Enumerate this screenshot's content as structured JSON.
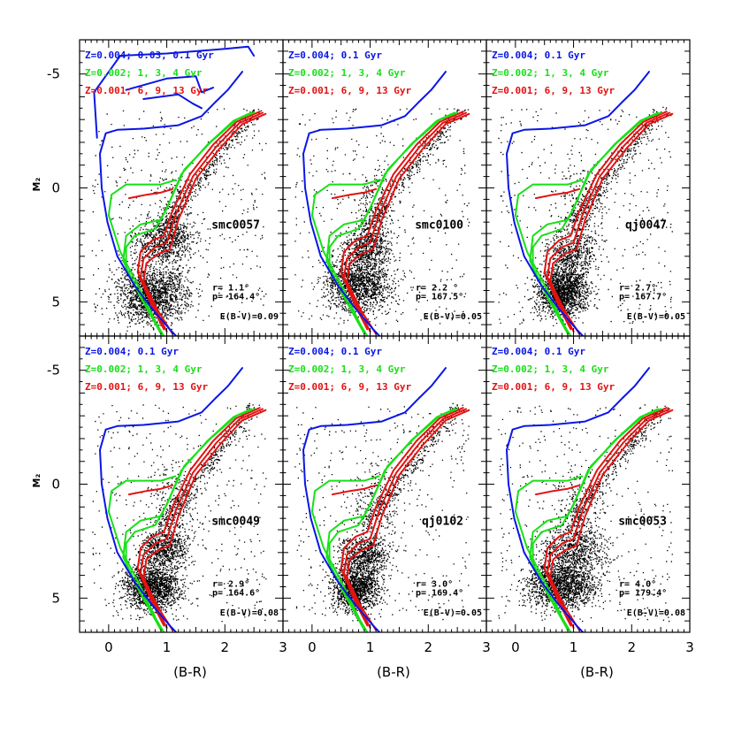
{
  "colors": {
    "blue": "#0a16e6",
    "green": "#18e018",
    "red": "#e31212",
    "stars": "#000000"
  },
  "axes": {
    "xlabel": "(B-R)",
    "ylabel": "M₂",
    "xticks": [
      "0",
      "1",
      "2",
      "3"
    ],
    "yticks": [
      "-5",
      "0",
      "5"
    ]
  },
  "chart_data": [
    {
      "type": "scatter",
      "field": "smc0057",
      "radius": "r= 1.1°",
      "pa": "p= 164.4°",
      "reddening": "E(B-V)=0.09",
      "legend": [
        {
          "color": "blue",
          "text": "Z=0.004; 0.03, 0.1 Gyr"
        },
        {
          "color": "green",
          "text": "Z=0.002; 1, 3, 4 Gyr"
        },
        {
          "color": "red",
          "text": "Z=0.001; 6, 9, 13 Gyr"
        }
      ],
      "xlim": [
        -0.5,
        3
      ],
      "ylim": [
        6.5,
        -6.5
      ],
      "xlabel": "(B-R)",
      "ylabel": "M₂"
    },
    {
      "type": "scatter",
      "field": "smc0100",
      "radius": "r= 2.2 °",
      "pa": "p= 167.5°",
      "reddening": "E(B-V)=0.05",
      "legend": [
        {
          "color": "blue",
          "text": "Z=0.004; 0.1 Gyr"
        },
        {
          "color": "green",
          "text": "Z=0.002; 1, 3, 4 Gyr"
        },
        {
          "color": "red",
          "text": "Z=0.001; 6, 9, 13 Gyr"
        }
      ],
      "xlim": [
        -0.5,
        3
      ],
      "ylim": [
        6.5,
        -6.5
      ],
      "xlabel": "(B-R)",
      "ylabel": "M₂"
    },
    {
      "type": "scatter",
      "field": "qj0047",
      "radius": "r= 2.7°",
      "pa": "p= 167.7°",
      "reddening": "E(B-V)=0.05",
      "legend": [
        {
          "color": "blue",
          "text": "Z=0.004; 0.1 Gyr"
        },
        {
          "color": "green",
          "text": "Z=0.002; 1, 3, 4 Gyr"
        },
        {
          "color": "red",
          "text": "Z=0.001; 6, 9, 13 Gyr"
        }
      ],
      "xlim": [
        -0.5,
        3
      ],
      "ylim": [
        6.5,
        -6.5
      ],
      "xlabel": "(B-R)",
      "ylabel": "M₂"
    },
    {
      "type": "scatter",
      "field": "smc0049",
      "radius": "r= 2.9°",
      "pa": "p= 164.6°",
      "reddening": "E(B-V)=0.08",
      "legend": [
        {
          "color": "blue",
          "text": "Z=0.004; 0.1 Gyr"
        },
        {
          "color": "green",
          "text": "Z=0.002; 1, 3, 4 Gyr"
        },
        {
          "color": "red",
          "text": "Z=0.001; 6, 9, 13 Gyr"
        }
      ],
      "xlim": [
        -0.5,
        3
      ],
      "ylim": [
        6.5,
        -6.5
      ],
      "xlabel": "(B-R)",
      "ylabel": "M₂"
    },
    {
      "type": "scatter",
      "field": "qj0102",
      "radius": "r= 3.0°",
      "pa": "p= 169.4°",
      "reddening": "E(B-V)=0.05",
      "legend": [
        {
          "color": "blue",
          "text": "Z=0.004; 0.1 Gyr"
        },
        {
          "color": "green",
          "text": "Z=0.002; 1, 3, 4 Gyr"
        },
        {
          "color": "red",
          "text": "Z=0.001; 6, 9, 13 Gyr"
        }
      ],
      "xlim": [
        -0.5,
        3
      ],
      "ylim": [
        6.5,
        -6.5
      ],
      "xlabel": "(B-R)",
      "ylabel": "M₂"
    },
    {
      "type": "scatter",
      "field": "smc0053",
      "radius": "r= 4.0°",
      "pa": "p= 179.4°",
      "reddening": "E(B-V)=0.08",
      "legend": [
        {
          "color": "blue",
          "text": "Z=0.004; 0.1 Gyr"
        },
        {
          "color": "green",
          "text": "Z=0.002; 1, 3, 4 Gyr"
        },
        {
          "color": "red",
          "text": "Z=0.001; 6, 9, 13 Gyr"
        }
      ],
      "xlim": [
        -0.5,
        3
      ],
      "ylim": [
        6.5,
        -6.5
      ],
      "xlabel": "(B-R)",
      "ylabel": "M₂"
    }
  ],
  "isochrones": {
    "blue_young": [
      [
        1.85,
        -3.8
      ],
      [
        1.6,
        -3.15
      ],
      [
        1.2,
        -2.75
      ],
      [
        0.6,
        -2.6
      ],
      [
        0.15,
        -2.55
      ],
      [
        -0.05,
        -2.4
      ],
      [
        -0.15,
        -1.5
      ],
      [
        -0.12,
        0
      ],
      [
        -0.02,
        1.5
      ],
      [
        0.15,
        3.0
      ],
      [
        0.45,
        4.3
      ],
      [
        0.75,
        5.3
      ],
      [
        1.05,
        6.2
      ],
      [
        1.2,
        6.6
      ]
    ],
    "blue_red_tail": [
      [
        1.85,
        -3.8
      ],
      [
        2.05,
        -4.3
      ],
      [
        2.3,
        -5.1
      ]
    ],
    "blue_extra": [
      [
        [
          -0.2,
          -2.2
        ],
        [
          -0.25,
          -4.2
        ],
        [
          0.2,
          -5.8
        ],
        [
          1.0,
          -5.9
        ],
        [
          2.0,
          -6.1
        ],
        [
          2.4,
          -6.2
        ],
        [
          2.5,
          -5.8
        ]
      ],
      [
        [
          0.3,
          -4.3
        ],
        [
          1.0,
          -4.8
        ],
        [
          1.5,
          -4.9
        ],
        [
          1.6,
          -4.2
        ],
        [
          1.8,
          -4.4
        ]
      ],
      [
        [
          0.6,
          -3.9
        ],
        [
          1.2,
          -4.1
        ],
        [
          1.45,
          -3.7
        ],
        [
          1.6,
          -3.5
        ]
      ]
    ],
    "red_giant": [
      [
        [
          0.95,
          2.1
        ],
        [
          1.1,
          1.0
        ],
        [
          1.4,
          -0.6
        ],
        [
          1.8,
          -1.9
        ],
        [
          2.2,
          -2.9
        ],
        [
          2.6,
          -3.35
        ]
      ],
      [
        [
          1.0,
          2.4
        ],
        [
          1.15,
          1.2
        ],
        [
          1.45,
          -0.5
        ],
        [
          1.85,
          -1.8
        ],
        [
          2.25,
          -2.85
        ],
        [
          2.65,
          -3.3
        ]
      ],
      [
        [
          1.05,
          2.7
        ],
        [
          1.2,
          1.4
        ],
        [
          1.5,
          -0.4
        ],
        [
          1.9,
          -1.7
        ],
        [
          2.3,
          -2.8
        ],
        [
          2.7,
          -3.25
        ]
      ]
    ],
    "red_ms": [
      [
        [
          0.95,
          2.1
        ],
        [
          0.75,
          2.3
        ],
        [
          0.55,
          2.8
        ],
        [
          0.5,
          3.7
        ],
        [
          0.75,
          5.2
        ],
        [
          0.95,
          6.2
        ]
      ],
      [
        [
          1.0,
          2.4
        ],
        [
          0.8,
          2.6
        ],
        [
          0.6,
          3.1
        ],
        [
          0.55,
          3.9
        ],
        [
          0.8,
          5.3
        ],
        [
          1.0,
          6.3
        ]
      ],
      [
        [
          1.05,
          2.7
        ],
        [
          0.85,
          2.9
        ],
        [
          0.65,
          3.3
        ],
        [
          0.6,
          4.1
        ],
        [
          0.85,
          5.4
        ],
        [
          1.1,
          6.4
        ]
      ]
    ],
    "red_hb": [
      [
        0.35,
        0.45
      ],
      [
        0.65,
        0.3
      ],
      [
        0.9,
        0.2
      ],
      [
        1.1,
        0.05
      ]
    ],
    "green_giant": [
      [
        [
          0.9,
          1.4
        ],
        [
          1.05,
          0.6
        ],
        [
          1.3,
          -0.8
        ],
        [
          1.75,
          -2.0
        ],
        [
          2.2,
          -3.0
        ],
        [
          2.5,
          -3.3
        ]
      ],
      [
        [
          0.8,
          1.8
        ],
        [
          1.0,
          0.9
        ],
        [
          1.25,
          -0.6
        ],
        [
          1.7,
          -1.9
        ],
        [
          2.15,
          -2.95
        ],
        [
          2.45,
          -3.3
        ]
      ]
    ],
    "green_ms": [
      [
        [
          0.9,
          1.4
        ],
        [
          0.55,
          1.6
        ],
        [
          0.3,
          2.1
        ],
        [
          0.25,
          3.2
        ],
        [
          0.55,
          4.8
        ],
        [
          0.9,
          6.4
        ]
      ],
      [
        [
          0.8,
          1.8
        ],
        [
          0.45,
          2.1
        ],
        [
          0.3,
          2.6
        ],
        [
          0.3,
          3.5
        ],
        [
          0.6,
          5.0
        ],
        [
          0.95,
          6.5
        ]
      ]
    ],
    "green_young": [
      [
        1.15,
        -0.35
      ],
      [
        0.9,
        -0.15
      ],
      [
        0.3,
        -0.15
      ],
      [
        0.05,
        0.3
      ],
      [
        0.0,
        1.2
      ],
      [
        0.2,
        2.8
      ],
      [
        0.55,
        4.5
      ],
      [
        0.85,
        6.1
      ]
    ]
  },
  "density": [
    [
      [
        0.75,
        4.7,
        0.3,
        0.6,
        0.6
      ],
      [
        0.95,
        2.4,
        0.25,
        0.5,
        0.25
      ],
      [
        1.1,
        1.2,
        0.15,
        0.9,
        0.1
      ]
    ],
    [
      [
        0.8,
        4.2,
        0.28,
        0.6,
        0.55
      ],
      [
        0.95,
        2.6,
        0.2,
        0.4,
        0.2
      ],
      [
        1.1,
        1.0,
        0.15,
        0.9,
        0.1
      ]
    ],
    [
      [
        0.8,
        4.6,
        0.22,
        0.5,
        0.6
      ],
      [
        0.95,
        3.0,
        0.2,
        0.5,
        0.2
      ],
      [
        1.15,
        1.0,
        0.2,
        0.9,
        0.1
      ]
    ],
    [
      [
        0.75,
        4.5,
        0.25,
        0.5,
        0.6
      ],
      [
        0.95,
        2.8,
        0.2,
        0.4,
        0.25
      ],
      [
        1.15,
        1.0,
        0.2,
        0.9,
        0.1
      ]
    ],
    [
      [
        0.75,
        4.6,
        0.2,
        0.5,
        0.5
      ],
      [
        0.9,
        3.1,
        0.2,
        0.4,
        0.25
      ],
      [
        1.1,
        1.0,
        0.2,
        0.9,
        0.1
      ]
    ],
    [
      [
        0.8,
        4.4,
        0.3,
        0.5,
        0.6
      ],
      [
        1.0,
        2.9,
        0.3,
        0.5,
        0.25
      ],
      [
        1.1,
        1.2,
        0.2,
        0.9,
        0.1
      ]
    ]
  ]
}
